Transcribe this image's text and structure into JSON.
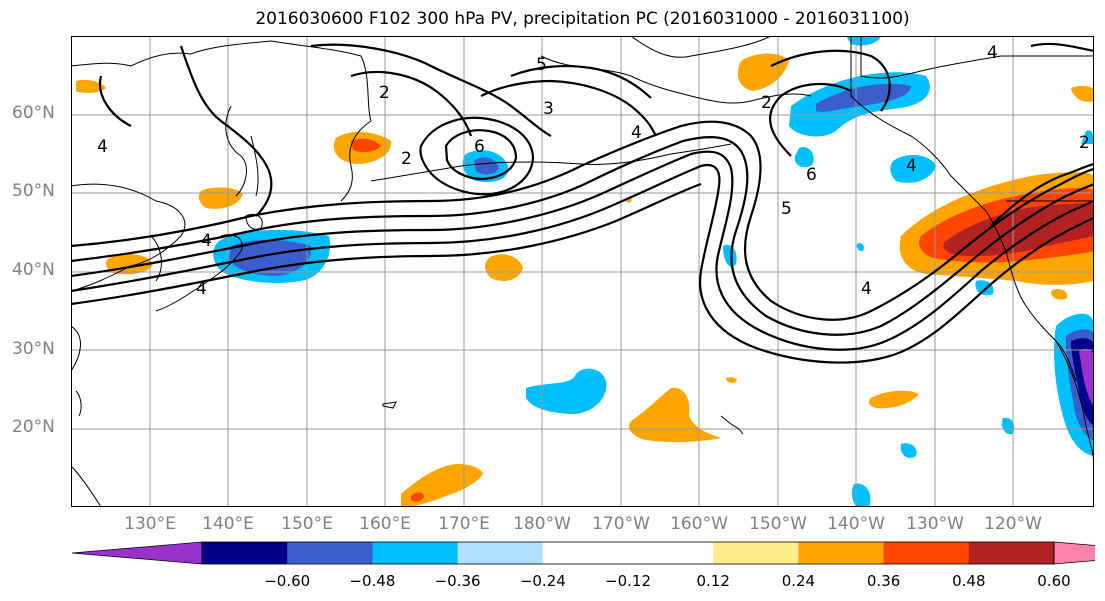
{
  "title": "2016030600 F102 300 hPa PV, precipitation PC (2016031000 - 2016031100)",
  "lat_labels": [
    "60°N",
    "50°N",
    "40°N",
    "30°N",
    "20°N"
  ],
  "lon_labels": [
    "130°E",
    "140°E",
    "150°E",
    "160°E",
    "170°E",
    "180°W",
    "170°W",
    "160°W",
    "150°W",
    "140°W",
    "130°W",
    "120°W"
  ],
  "contour_labels": [
    "4",
    "4",
    "2",
    "2",
    "3",
    "6",
    "5",
    "4",
    "5",
    "6",
    "4",
    "4",
    "4",
    "2",
    "4",
    "2"
  ],
  "colorbar": {
    "colors": [
      "#9932cc",
      "#00008b",
      "#3a5fcd",
      "#00bfff",
      "#b0e2ff",
      "#ffffff",
      "#ffffff",
      "#ffec8b",
      "#ffa500",
      "#ff4500",
      "#b22222",
      "#ff82ab"
    ],
    "labels": [
      "−0.60",
      "−0.48",
      "−0.36",
      "−0.24",
      "−0.12",
      "0.12",
      "0.24",
      "0.36",
      "0.48",
      "0.60"
    ]
  }
}
